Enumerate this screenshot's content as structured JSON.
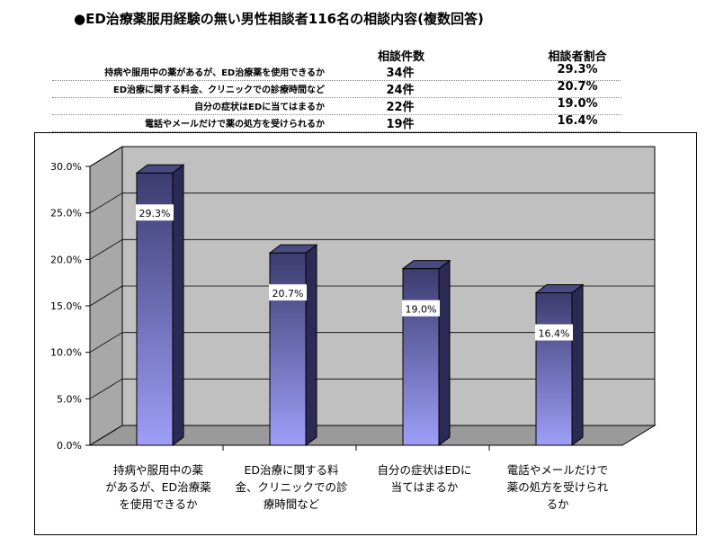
{
  "title": "●ED治療薬服用経験の無い男性相談者116名の相談内容(複数回答)",
  "table": {
    "headers": [
      "相談件数",
      "相談者割合"
    ],
    "rows": [
      {
        "label": "持病や服用中の薬があるが、ED治療薬を使用できるか",
        "count": "34件",
        "ratio": "29.3%"
      },
      {
        "label": "ED治療に関する料金、クリニックでの診療時間など",
        "count": "24件",
        "ratio": "20.7%"
      },
      {
        "label": "自分の症状はEDに当てはまるか",
        "count": "22件",
        "ratio": "19.0%"
      },
      {
        "label": "電話やメールだけで薬の処方を受けられるか",
        "count": "19件",
        "ratio": "16.4%"
      }
    ]
  },
  "chart_data": {
    "type": "bar",
    "categories": [
      [
        "持病や服用中の薬",
        "があるが、ED治療薬",
        "を使用できるか"
      ],
      [
        "ED治療に関する料",
        "金、クリニックでの診",
        "療時間など"
      ],
      [
        "自分の症状はEDに",
        "当てはまるか"
      ],
      [
        "電話やメールだけで",
        "薬の処方を受けられ",
        "るか"
      ]
    ],
    "values": [
      29.3,
      20.7,
      19.0,
      16.4
    ],
    "data_labels": [
      "29.3%",
      "20.7%",
      "19.0%",
      "16.4%"
    ],
    "yticks": [
      "0.0%",
      "5.0%",
      "10.0%",
      "15.0%",
      "20.0%",
      "25.0%",
      "30.0%"
    ],
    "ylim": [
      0,
      30
    ],
    "grid": true,
    "style": "3d",
    "colors": {
      "bar_top": "#3c3c70",
      "bar_bottom": "#9e9ef8",
      "bar_side": "#2a2a55",
      "wall": "#c0c0c0",
      "floor": "#9a9a9a"
    }
  }
}
